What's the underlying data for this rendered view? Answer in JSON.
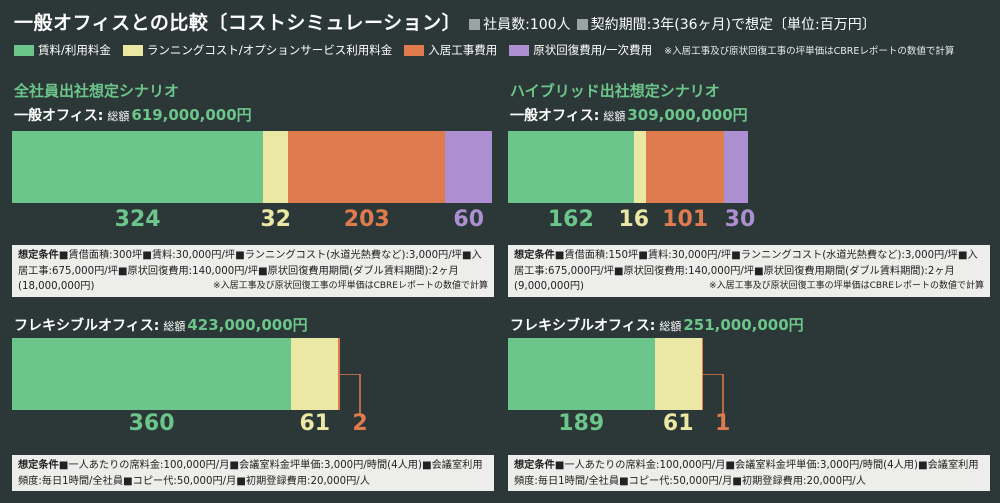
{
  "header": {
    "title": "一般オフィスとの比較〔コストシミュレーション〕",
    "employees": "社員数:100人",
    "contract": "契約期間:3年(36ヶ月)で想定〔単位:百万円〕"
  },
  "legend": {
    "items": [
      {
        "label": "賃料/利用料金",
        "color": "#6cc58a"
      },
      {
        "label": "ランニングコスト/オプションサービス利用料金",
        "color": "#ebe7a4"
      },
      {
        "label": "入居工事費用",
        "color": "#e07b4f"
      },
      {
        "label": "原状回復費用/一次費用",
        "color": "#ac8fd1"
      }
    ],
    "note": "※入居工事及び原状回復工事の坪単価はCBREレポートの数値で計算"
  },
  "chart_data": [
    {
      "type": "bar",
      "scenario": "全社員出社想定シナリオ",
      "label": "一般オフィス:",
      "total_word": "総額",
      "total": "619,000,000円",
      "values": [
        324,
        32,
        203,
        60
      ],
      "condition": {
        "head": "想定条件",
        "text": "■賃借面積:300坪■賃料:30,000円/坪■ランニングコスト(水道光熱費など):3,000円/坪■入居工事:675,000円/坪■原状回復費用:140,000円/坪■原状回復費用期間(ダブル賃料期間):2ヶ月(18,000,000円)",
        "note": "※入居工事及び原状回復工事の坪単価はCBREレポートの数値で計算"
      }
    },
    {
      "type": "bar",
      "scenario": "ハイブリッド出社想定シナリオ",
      "label": "一般オフィス:",
      "total_word": "総額",
      "total": "309,000,000円",
      "values": [
        162,
        16,
        101,
        30
      ],
      "condition": {
        "head": "想定条件",
        "text": "■賃借面積:150坪■賃料:30,000円/坪■ランニングコスト(水道光熱費など):3,000円/坪■入居工事:675,000円/坪■原状回復費用:140,000円/坪■原状回復費用期間(ダブル賃料期間):2ヶ月(9,000,000円)",
        "note": "※入居工事及び原状回復工事の坪単価はCBREレポートの数値で計算"
      }
    },
    {
      "type": "bar",
      "label": "フレキシブルオフィス:",
      "total_word": "総額",
      "total": "423,000,000円",
      "values": [
        360,
        61,
        2
      ],
      "condition": {
        "head": "想定条件",
        "text": "■一人あたりの席料金:100,000円/月■会議室料金坪単価:3,000円/時間(4人用)■会議室利用頻度:毎日1時間/全社員■コピー代:50,000円/月■初期登録費用:20,000円/人",
        "note": ""
      }
    },
    {
      "type": "bar",
      "label": "フレキシブルオフィス:",
      "total_word": "総額",
      "total": "251,000,000円",
      "values": [
        189,
        61,
        1
      ],
      "condition": {
        "head": "想定条件",
        "text": "■一人あたりの席料金:100,000円/月■会議室料金坪単価:3,000円/時間(4人用)■会議室利用頻度:毎日1時間/全社員■コピー代:50,000円/月■初期登録費用:20,000円/人",
        "note": ""
      }
    }
  ]
}
